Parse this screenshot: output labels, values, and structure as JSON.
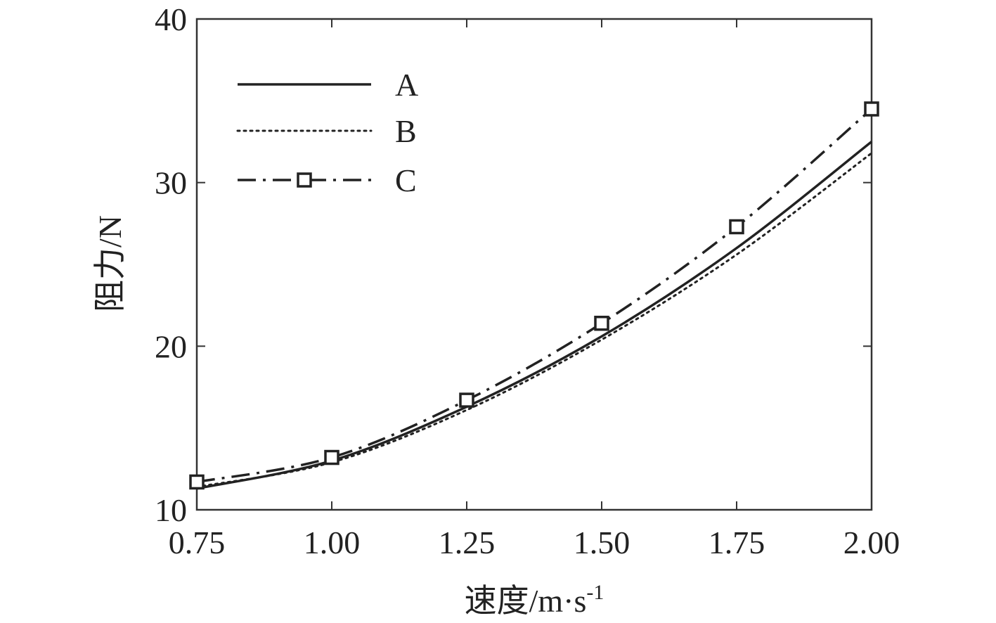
{
  "chart_data": {
    "type": "line",
    "title": "",
    "xlabel": "速度/m·s",
    "xlabel_sup": "-1",
    "ylabel": "阻力/N",
    "xlim": [
      0.75,
      2.0
    ],
    "ylim": [
      10,
      40
    ],
    "xticks": [
      0.75,
      1.0,
      1.25,
      1.5,
      1.75,
      2.0
    ],
    "xtick_labels": [
      "0.75",
      "1.00",
      "1.25",
      "1.50",
      "1.75",
      "2.00"
    ],
    "yticks": [
      10,
      20,
      30,
      40
    ],
    "ytick_labels": [
      "10",
      "20",
      "30",
      "40"
    ],
    "grid": false,
    "legend_position": "top-left",
    "x": [
      0.75,
      1.0,
      1.25,
      1.5,
      1.75,
      2.0
    ],
    "series": [
      {
        "name": "A",
        "style": "solid",
        "marker": "none",
        "values": [
          11.3,
          13.0,
          16.3,
          20.6,
          26.0,
          32.5
        ]
      },
      {
        "name": "B",
        "style": "dotted",
        "marker": "none",
        "values": [
          11.4,
          12.9,
          16.1,
          20.4,
          25.6,
          31.8
        ]
      },
      {
        "name": "C",
        "style": "dashdot",
        "marker": "square",
        "values": [
          11.7,
          13.2,
          16.7,
          21.4,
          27.3,
          34.5
        ]
      }
    ],
    "colors": {
      "line": "#222222",
      "axis": "#333333"
    }
  }
}
